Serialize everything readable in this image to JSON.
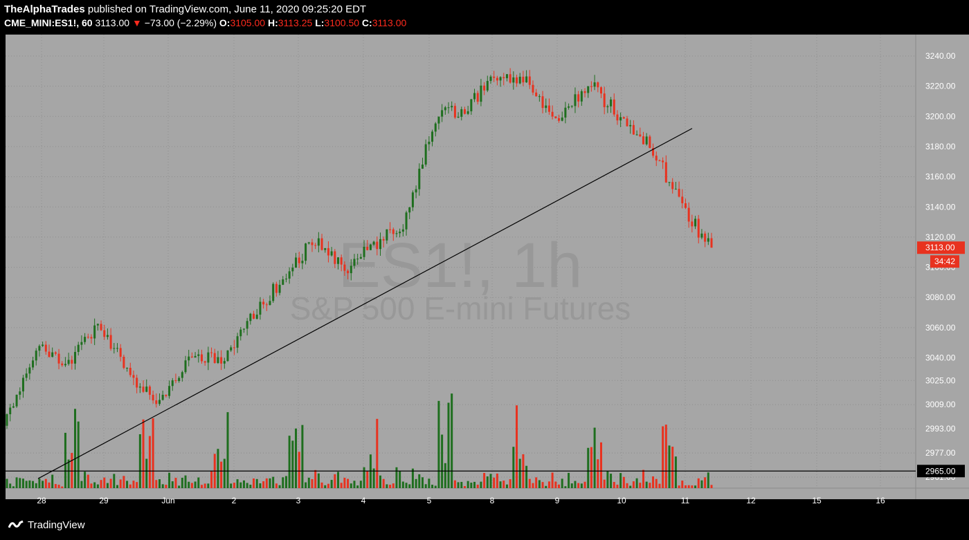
{
  "header": {
    "publisher": "TheAlphaTrades",
    "published_text": "published on TradingView.com, June 11, 2020 09:25:20 EDT",
    "symbol": "CME_MINI:ES1!, 60",
    "last": "3113.00",
    "change": "−73.00 (−2.29%)",
    "open_label": "O:",
    "open": "3105.00",
    "high_label": "H:",
    "high": "3113.25",
    "low_label": "L:",
    "low": "3100.50",
    "close_label": "C:",
    "close": "3113.00"
  },
  "watermark": {
    "symbol": "ES1!, 1h",
    "name": "S&P 500 E-mini Futures"
  },
  "footer": {
    "brand": "TradingView"
  },
  "colors": {
    "background": "#a6a6a6",
    "up": "#1e6e1e",
    "down": "#e8321f",
    "price_tag": "#e8321f",
    "axis_text": "#ffffff",
    "trendline": "#000000"
  },
  "chart_data": {
    "type": "candlestick",
    "timeframe": "60",
    "ylim": [
      2957,
      3246
    ],
    "price_ticks": [
      "3240.00",
      "3220.00",
      "3200.00",
      "3180.00",
      "3160.00",
      "3140.00",
      "3120.00",
      "3100.00",
      "3080.00",
      "3060.00",
      "3040.00",
      "3025.00",
      "3009.00",
      "2993.00",
      "2977.00",
      "2961.00"
    ],
    "date_ticks": [
      "28",
      "29",
      "Jun",
      "2",
      "3",
      "4",
      "5",
      "8",
      "9",
      "10",
      "11",
      "12",
      "15",
      "16"
    ],
    "last_price_label": "3113.00",
    "countdown_label": "34:42",
    "horizontal_line_label": "2965.00",
    "horizontal_line_price": 2965,
    "trendline": {
      "start": {
        "date": "May 28",
        "price": 2960
      },
      "end": {
        "date": "Jun 11",
        "price": 3192
      }
    },
    "price_path": [
      {
        "date": "May 27 late",
        "close": 3000
      },
      {
        "date": "May 28",
        "close": 3050
      },
      {
        "date": "May 28 mid",
        "close": 3035
      },
      {
        "date": "May 28 late",
        "close": 3063
      },
      {
        "date": "May 29",
        "close": 3030
      },
      {
        "date": "May 29 late",
        "close": 3010
      },
      {
        "date": "Jun 1",
        "close": 3042
      },
      {
        "date": "Jun 2",
        "close": 3038
      },
      {
        "date": "Jun 2 late",
        "close": 3068
      },
      {
        "date": "Jun 3",
        "close": 3092
      },
      {
        "date": "Jun 3 late",
        "close": 3118
      },
      {
        "date": "Jun 4",
        "close": 3098
      },
      {
        "date": "Jun 4 late",
        "close": 3115
      },
      {
        "date": "Jun 5",
        "close": 3130
      },
      {
        "date": "Jun 5 mid",
        "close": 3200
      },
      {
        "date": "Jun 8",
        "close": 3205
      },
      {
        "date": "Jun 8 late",
        "close": 3228
      },
      {
        "date": "Jun 9",
        "close": 3222
      },
      {
        "date": "Jun 9 mid",
        "close": 3195
      },
      {
        "date": "Jun 10",
        "close": 3222
      },
      {
        "date": "Jun 10 mid",
        "close": 3200
      },
      {
        "date": "Jun 10 late",
        "close": 3182
      },
      {
        "date": "Jun 11",
        "close": 3140
      },
      {
        "date": "Jun 11 late",
        "close": 3113
      }
    ]
  }
}
